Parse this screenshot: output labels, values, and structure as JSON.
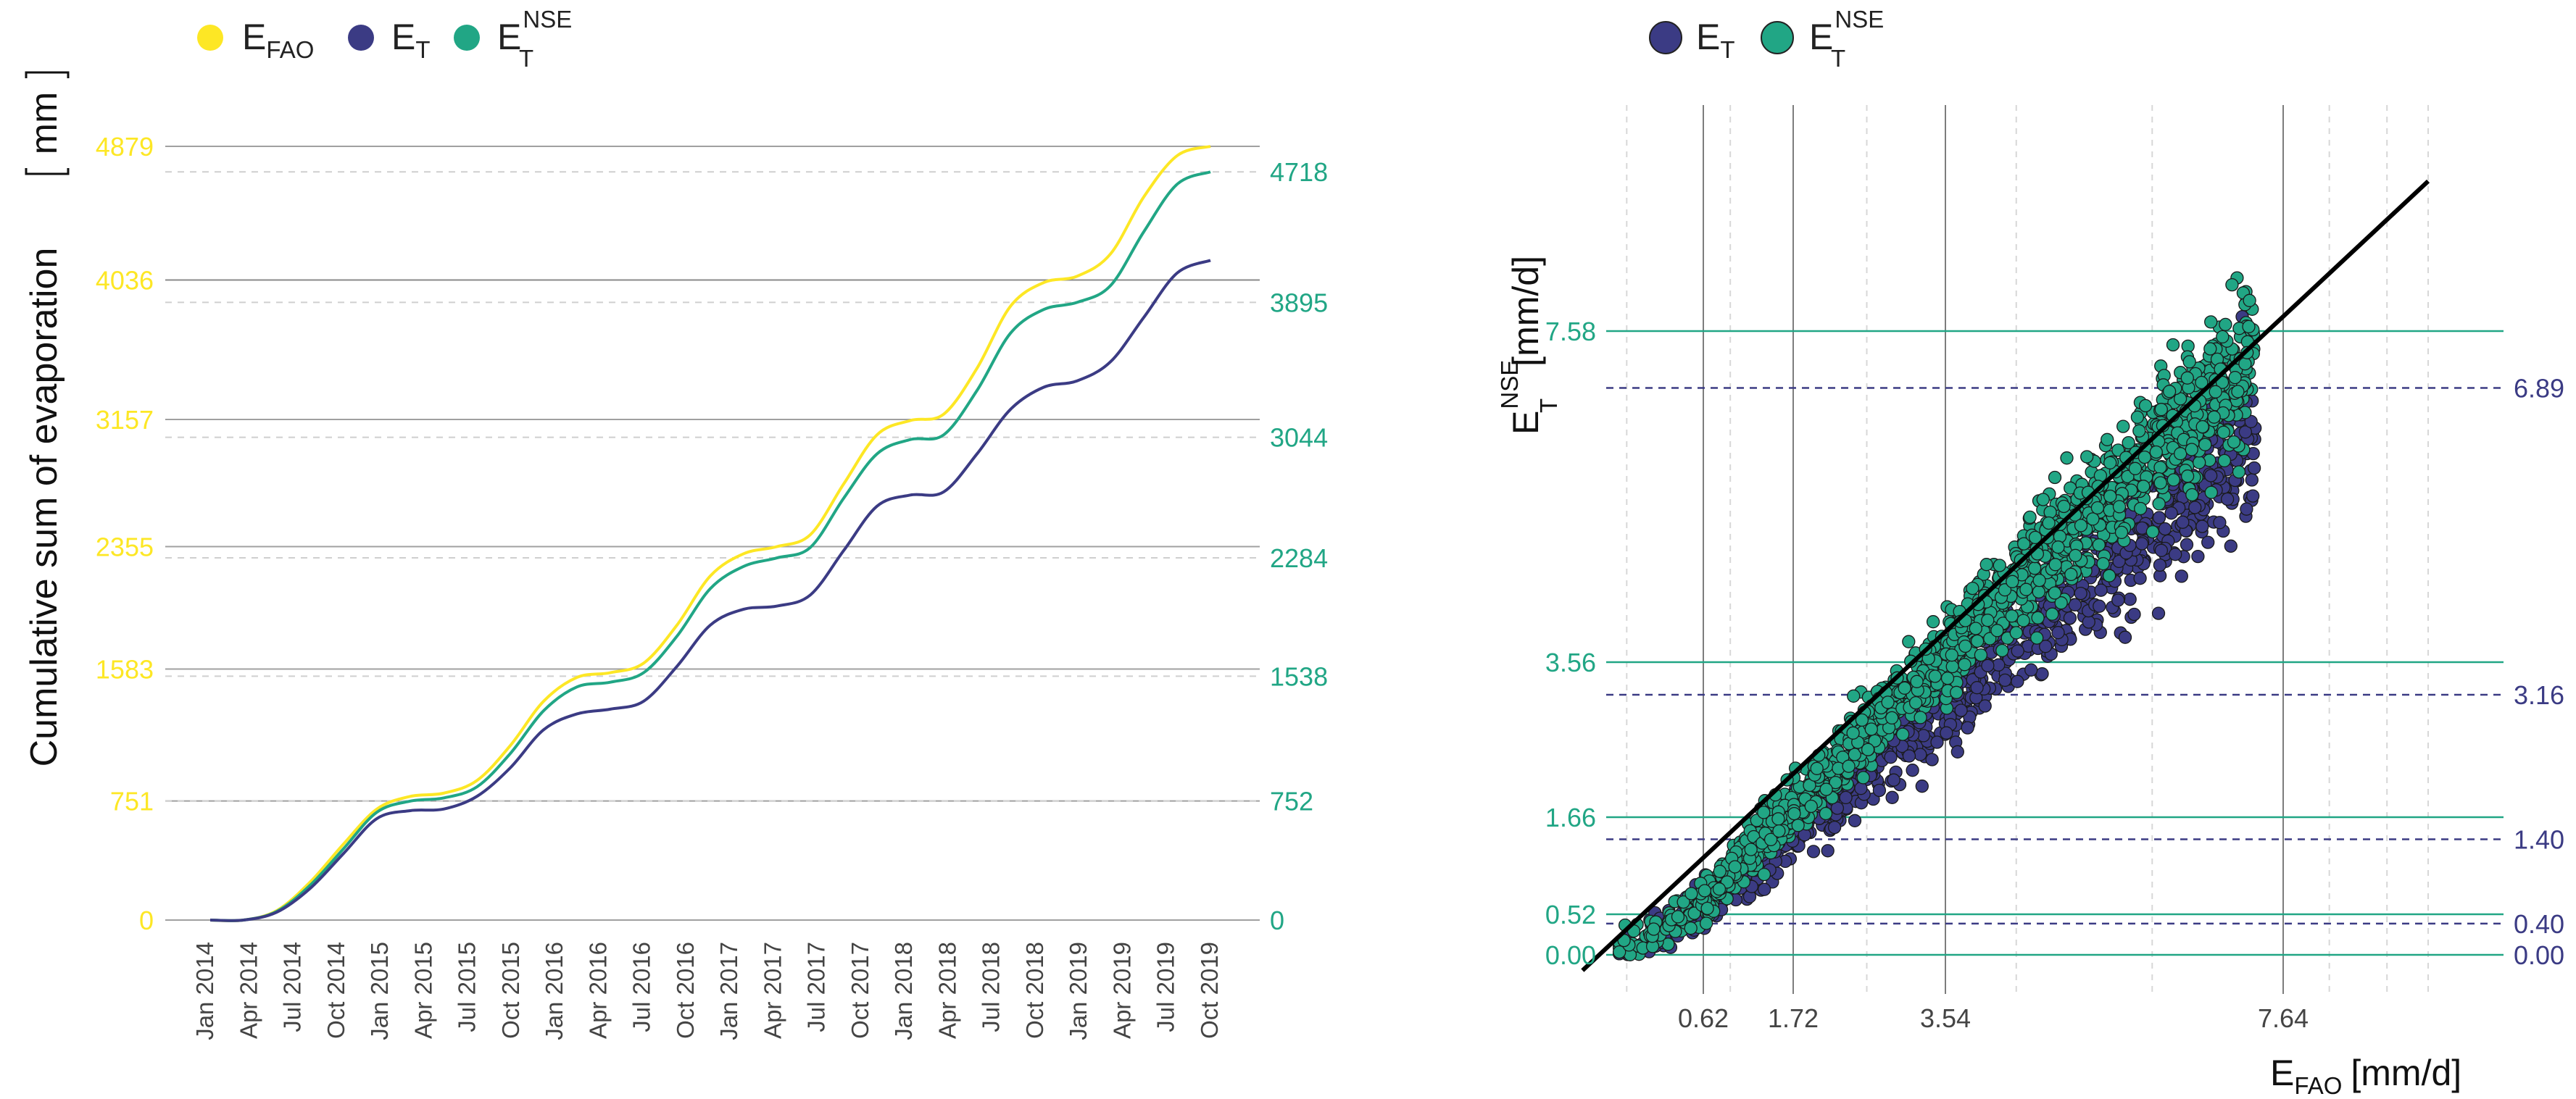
{
  "colors": {
    "efao": "#fde725",
    "et": "#3b3b84",
    "etnse": "#21a685",
    "axis_text": "#444444",
    "grid_major": "#a0a0a0",
    "grid_minor": "#cfcfcf"
  },
  "chart_data": [
    {
      "type": "line",
      "title": "",
      "ylabel": "Cumulative sum of evaporation",
      "ylabel_unit": "mm",
      "xlabel": "",
      "ylim": [
        0,
        4879
      ],
      "legend": [
        {
          "base": "E",
          "sub": "FAO",
          "sup": "",
          "color_key": "efao"
        },
        {
          "base": "E",
          "sub": "T",
          "sup": "",
          "color_key": "et"
        },
        {
          "base": "E",
          "sub": "T",
          "sup": "NSE",
          "color_key": "etnse"
        }
      ],
      "x_tick_labels": [
        "Jan 2014",
        "Apr 2014",
        "Jul 2014",
        "Oct 2014",
        "Jan 2015",
        "Apr 2015",
        "Jul 2015",
        "Oct 2015",
        "Jan 2016",
        "Apr 2016",
        "Jul 2016",
        "Oct 2016",
        "Jan 2017",
        "Apr 2017",
        "Jul 2017",
        "Oct 2017",
        "Jan 2018",
        "Apr 2018",
        "Jul 2018",
        "Oct 2018",
        "Jan 2019",
        "Apr 2019",
        "Jul 2019",
        "Oct 2019"
      ],
      "left_ticks": [
        "0",
        "751",
        "1583",
        "2355",
        "3157",
        "4036",
        "4879"
      ],
      "right_ticks": [
        "0",
        "752",
        "1538",
        "2284",
        "3044",
        "3895",
        "4718"
      ],
      "series": [
        {
          "name": "E_FAO",
          "color_key": "efao",
          "values": [
            0,
            0,
            60,
            240,
            480,
            700,
            780,
            800,
            880,
            1100,
            1380,
            1530,
            1560,
            1620,
            1860,
            2170,
            2310,
            2355,
            2430,
            2750,
            3060,
            3150,
            3190,
            3480,
            3870,
            4020,
            4060,
            4200,
            4560,
            4820,
            4879
          ]
        },
        {
          "name": "E_T",
          "color_key": "et",
          "values": [
            0,
            0,
            50,
            200,
            420,
            640,
            690,
            700,
            780,
            960,
            1200,
            1300,
            1330,
            1380,
            1600,
            1860,
            1960,
            1980,
            2050,
            2330,
            2610,
            2680,
            2700,
            2940,
            3220,
            3360,
            3400,
            3520,
            3800,
            4080,
            4160
          ]
        },
        {
          "name": "E_T^NSE",
          "color_key": "etnse",
          "values": [
            0,
            0,
            55,
            220,
            450,
            680,
            750,
            770,
            840,
            1050,
            1320,
            1470,
            1500,
            1560,
            1790,
            2090,
            2230,
            2284,
            2350,
            2660,
            2940,
            3030,
            3060,
            3340,
            3700,
            3850,
            3895,
            4000,
            4340,
            4640,
            4718
          ]
        }
      ]
    },
    {
      "type": "scatter",
      "title": "",
      "xlabel": {
        "base": "E",
        "sub": "FAO",
        "unit": "[mm/d]"
      },
      "ylabel": {
        "base": "E",
        "sub": "T",
        "sup": "NSE",
        "unit": "[mm/d]"
      },
      "xlim": [
        -0.1,
        9.7
      ],
      "ylim": [
        -0.6,
        9.4
      ],
      "legend": [
        {
          "base": "E",
          "sub": "T",
          "sup": "",
          "color_key": "et"
        },
        {
          "base": "E",
          "sub": "T",
          "sup": "NSE",
          "color_key": "etnse"
        }
      ],
      "x_ticks": [
        "0.62",
        "1.72",
        "3.54",
        "7.64"
      ],
      "left_ticks": [
        "0.00",
        "0.52",
        "1.66",
        "3.56",
        "7.58"
      ],
      "right_ticks": [
        "0.00",
        "0.40",
        "1.40",
        "3.16",
        "6.89"
      ],
      "identity_line": true,
      "series": [
        {
          "name": "E_T",
          "color_key": "et",
          "slope": 0.86,
          "n": 900,
          "seed": 7
        },
        {
          "name": "E_T^NSE",
          "color_key": "etnse",
          "slope": 0.98,
          "n": 1400,
          "seed": 13
        }
      ]
    }
  ]
}
